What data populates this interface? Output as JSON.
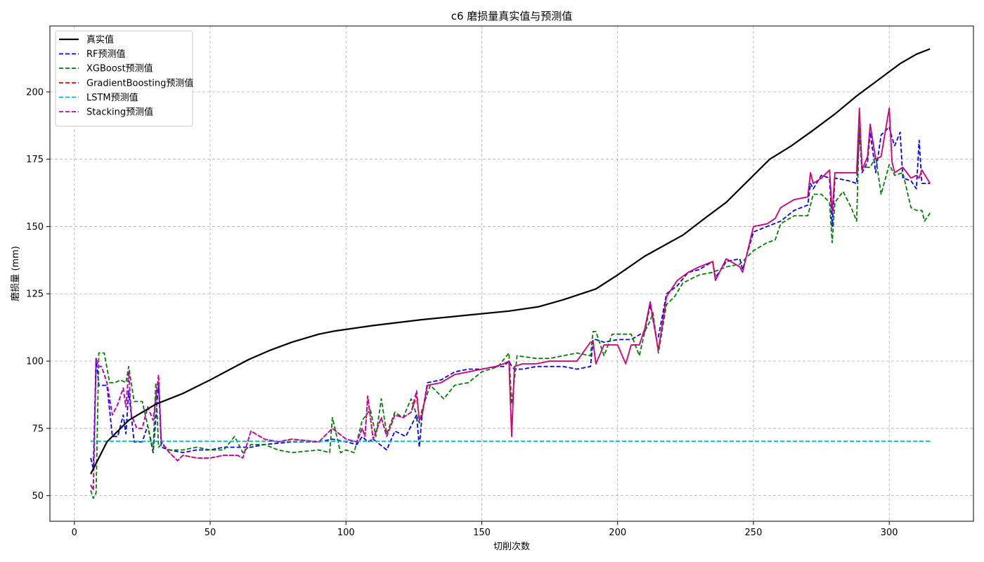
{
  "chart_data": {
    "type": "line",
    "title": "c6 磨损量真实值与预测值",
    "xlabel": "切削次数",
    "ylabel": "磨损量 (mm)",
    "xlim": [
      -9,
      331
    ],
    "ylim": [
      40.5,
      224.5
    ],
    "x_ticks": [
      0,
      50,
      100,
      150,
      200,
      250,
      300
    ],
    "y_ticks": [
      50,
      75,
      100,
      125,
      150,
      175,
      200
    ],
    "grid": true,
    "legend_position": "top-left",
    "series": [
      {
        "name": "真实值",
        "color": "#000000",
        "style": "solid",
        "x": [
          6,
          8,
          12,
          20,
          30,
          40,
          50,
          64,
          72,
          80,
          90,
          96,
          110,
          128,
          144,
          160,
          171,
          180,
          192,
          200,
          210,
          224,
          232,
          240,
          256,
          264,
          272,
          280,
          288,
          296,
          304,
          310,
          315
        ],
        "y": [
          58,
          62,
          70,
          78,
          84,
          88,
          93,
          100.5,
          104,
          107,
          110,
          111.2,
          113.2,
          115.4,
          117,
          118.6,
          120.2,
          122.8,
          126.8,
          132,
          139,
          146.8,
          153,
          159,
          175,
          180,
          185.8,
          191.8,
          198.5,
          204.5,
          210.5,
          214,
          216
        ]
      },
      {
        "name": "RF预测值",
        "color": "#0000ff",
        "style": "dashed",
        "x": [
          6,
          7,
          8,
          9,
          10,
          12,
          14,
          16,
          18,
          19,
          20,
          22,
          25,
          27,
          29,
          31,
          32,
          35,
          40,
          45,
          50,
          55,
          60,
          65,
          70,
          80,
          90,
          95,
          100,
          104,
          106,
          108,
          110,
          115,
          118,
          122,
          126,
          127,
          128,
          130,
          135,
          140,
          145,
          150,
          155,
          158,
          160,
          161,
          162,
          165,
          170,
          175,
          180,
          185,
          190,
          191,
          192,
          195,
          200,
          205,
          210,
          212,
          214,
          215,
          218,
          222,
          226,
          230,
          235,
          236,
          240,
          245,
          246,
          250,
          255,
          260,
          265,
          270,
          271,
          272,
          275,
          278,
          279,
          280,
          285,
          288,
          289,
          290,
          292,
          293,
          295,
          297,
          300,
          301,
          302,
          304,
          305,
          308,
          310,
          311,
          312,
          315
        ],
        "y": [
          64,
          60,
          101,
          91,
          91,
          91,
          72,
          72,
          80,
          73,
          89,
          70,
          70,
          76,
          66,
          92,
          68,
          67,
          66,
          67,
          67,
          68,
          68,
          68,
          69,
          70,
          70,
          71,
          70,
          69,
          72,
          70,
          71,
          67,
          74,
          72,
          80,
          68,
          80,
          92,
          93,
          96,
          97,
          97,
          98,
          98,
          100,
          98,
          97,
          97,
          98,
          98,
          98,
          97,
          98,
          108,
          108,
          107,
          108,
          108,
          111,
          121,
          110,
          109,
          125,
          128,
          133,
          134,
          137,
          131,
          137,
          138,
          134,
          148,
          150,
          152,
          156,
          158,
          166,
          164,
          169,
          168,
          150,
          168,
          167,
          166,
          186,
          170,
          174,
          185,
          170,
          184,
          187,
          183,
          180,
          185,
          168,
          167,
          164,
          182,
          166,
          166
        ]
      },
      {
        "name": "XGBoost预测值",
        "color": "#008000",
        "style": "dashed",
        "x": [
          6,
          7,
          8,
          9,
          11,
          13,
          15,
          17,
          19,
          20,
          22,
          25,
          29,
          30,
          31,
          32,
          35,
          40,
          45,
          50,
          55,
          59,
          62,
          65,
          70,
          75,
          80,
          90,
          94,
          95,
          98,
          100,
          103,
          106,
          109,
          111,
          113,
          115,
          118,
          121,
          124,
          127,
          128,
          131,
          136,
          140,
          145,
          150,
          156,
          160,
          161,
          163,
          170,
          175,
          180,
          185,
          190,
          191,
          192,
          195,
          198,
          205,
          208,
          210,
          212,
          213,
          215,
          218,
          221,
          224,
          228,
          230,
          235,
          240,
          245,
          250,
          255,
          258,
          260,
          265,
          270,
          272,
          275,
          278,
          279,
          280,
          283,
          286,
          288,
          289,
          290,
          293,
          295,
          297,
          300,
          302,
          305,
          308,
          310,
          312,
          313,
          315
        ],
        "y": [
          52,
          49,
          51,
          103,
          103,
          92,
          92,
          93,
          92,
          98,
          85,
          85,
          67,
          92,
          68,
          69,
          67,
          67,
          68,
          67,
          67,
          72,
          66,
          69,
          69,
          67,
          66,
          67,
          66,
          79,
          66,
          67,
          66,
          78,
          82,
          72,
          86,
          73,
          81,
          79,
          86,
          77,
          82,
          91,
          86,
          91,
          92,
          96,
          98,
          103,
          84,
          102,
          101,
          101,
          102,
          103,
          102,
          111,
          111,
          102,
          110,
          110,
          102,
          111,
          115,
          118,
          103,
          121,
          124,
          129,
          131,
          132,
          133,
          135,
          136,
          141,
          144,
          145,
          151,
          154,
          154,
          162,
          162,
          159,
          144,
          159,
          163,
          157,
          152,
          187,
          172,
          172,
          176,
          162,
          173,
          169,
          170,
          157,
          156,
          156,
          152,
          155
        ]
      },
      {
        "name": "GradientBoosting预测值",
        "color": "#ff0000",
        "style": "dashed",
        "x": [
          6,
          7,
          8,
          9,
          10,
          12,
          14,
          16,
          18,
          19,
          20,
          21,
          23,
          25,
          27,
          29,
          31,
          32,
          35,
          38,
          40,
          45,
          50,
          55,
          60,
          62,
          65,
          70,
          75,
          80,
          90,
          95,
          100,
          104,
          106,
          107,
          108,
          110,
          113,
          115,
          118,
          121,
          124,
          126,
          127,
          128,
          130,
          135,
          140,
          145,
          150,
          155,
          158,
          160,
          161,
          162,
          165,
          170,
          175,
          180,
          185,
          190,
          191,
          192,
          195,
          200,
          203,
          205,
          208,
          210,
          212,
          214,
          215,
          218,
          222,
          226,
          230,
          235,
          236,
          240,
          245,
          246,
          250,
          255,
          258,
          260,
          265,
          270,
          271,
          272,
          275,
          278,
          279,
          280,
          285,
          288,
          289,
          290,
          292,
          293,
          295,
          297,
          300,
          301,
          302,
          305,
          308,
          310,
          311,
          312,
          315
        ],
        "y": [
          54,
          52,
          101,
          98,
          98,
          92,
          80,
          84,
          90,
          83,
          96,
          80,
          75,
          75,
          83,
          78,
          94,
          70,
          66,
          63,
          65,
          64,
          64,
          65,
          65,
          64,
          74,
          71,
          70,
          71,
          70,
          75,
          71,
          70,
          75,
          72,
          87,
          71,
          79,
          72,
          80,
          79,
          81,
          87,
          78,
          80,
          91,
          92,
          95,
          96,
          97,
          98,
          99,
          100,
          72,
          98,
          99,
          99,
          100,
          100,
          100,
          107,
          107,
          99,
          106,
          106,
          99,
          106,
          106,
          112,
          122,
          110,
          104,
          124,
          130,
          133,
          135,
          137,
          130,
          138,
          135,
          133,
          150,
          151,
          153,
          157,
          160,
          161,
          170,
          166,
          168,
          171,
          155,
          170,
          170,
          170,
          194,
          171,
          176,
          188,
          175,
          176,
          194,
          174,
          170,
          172,
          168,
          169,
          168,
          171,
          166
        ]
      },
      {
        "name": "LSTM预测值",
        "color": "#00bfbf",
        "style": "dashed",
        "x": [
          6,
          315
        ],
        "y": [
          70.2,
          70.2
        ]
      },
      {
        "name": "Stacking预测值",
        "color": "#bf00bf",
        "style": "dashed",
        "x": [
          6,
          7,
          8,
          9,
          10,
          12,
          14,
          16,
          18,
          19,
          20,
          21,
          23,
          25,
          27,
          29,
          31,
          32,
          35,
          38,
          40,
          45,
          50,
          55,
          60,
          62,
          65,
          70,
          75,
          80,
          90,
          95,
          100,
          104,
          106,
          107,
          108,
          110,
          113,
          115,
          118,
          121,
          124,
          126,
          127,
          128,
          130,
          135,
          140,
          145,
          150,
          155,
          158,
          160,
          161,
          162,
          165,
          170,
          175,
          180,
          185,
          190,
          191,
          192,
          195,
          200,
          203,
          205,
          208,
          210,
          212,
          214,
          215,
          218,
          222,
          226,
          230,
          235,
          236,
          240,
          245,
          246,
          250,
          255,
          258,
          260,
          265,
          270,
          271,
          272,
          275,
          278,
          279,
          280,
          285,
          288,
          289,
          290,
          292,
          293,
          295,
          297,
          300,
          301,
          302,
          305,
          308,
          310,
          311,
          312,
          315
        ],
        "y": [
          54,
          52,
          101,
          98,
          98,
          92,
          80,
          84,
          90,
          83,
          96,
          80,
          75,
          75,
          83,
          78,
          95,
          70,
          66,
          63,
          65,
          64,
          64,
          65,
          65,
          64,
          74,
          71,
          70,
          71,
          70,
          75,
          71,
          70,
          75,
          72,
          87,
          71,
          79,
          72,
          80,
          79,
          81,
          89,
          78,
          80,
          91,
          92,
          95,
          96,
          97,
          98,
          99,
          100,
          72,
          98,
          99,
          99,
          100,
          100,
          100,
          107,
          107,
          99,
          106,
          106,
          99,
          106,
          106,
          112,
          122,
          110,
          104,
          124,
          130,
          133,
          135,
          137,
          130,
          138,
          135,
          133,
          150,
          151,
          153,
          157,
          160,
          161,
          170,
          166,
          168,
          171,
          155,
          170,
          170,
          170,
          194,
          171,
          176,
          188,
          175,
          176,
          194,
          174,
          170,
          172,
          168,
          169,
          168,
          171,
          166
        ]
      }
    ]
  }
}
